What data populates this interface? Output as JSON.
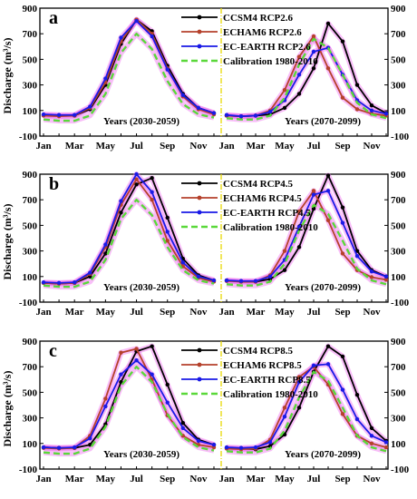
{
  "chart_data": [
    {
      "type": "line",
      "panel_label": "a",
      "ylabel": "Discharge (m³/s)",
      "ylim": [
        -100,
        900
      ],
      "yticks": [
        -100,
        100,
        300,
        500,
        700,
        900
      ],
      "xtick_labels": [
        "Jan",
        "Mar",
        "May",
        "Jul",
        "Sep",
        "Nov"
      ],
      "months": [
        "Jan",
        "Feb",
        "Mar",
        "Apr",
        "May",
        "Jun",
        "Jul",
        "Aug",
        "Sep",
        "Oct",
        "Nov",
        "Dec"
      ],
      "periods": [
        {
          "label": "Years (2030-2059)",
          "series": [
            {
              "name": "CCSM4 RCP2.6",
              "values": [
                65,
                60,
                60,
                110,
                300,
                620,
                810,
                720,
                450,
                230,
                120,
                80
              ]
            },
            {
              "name": "ECHAM6 RCP2.6",
              "values": [
                60,
                55,
                60,
                120,
                320,
                640,
                810,
                700,
                430,
                210,
                110,
                70
              ]
            },
            {
              "name": "EC-EARTH RCP2.6",
              "values": [
                70,
                65,
                65,
                130,
                350,
                670,
                800,
                680,
                420,
                220,
                120,
                80
              ]
            },
            {
              "name": "Calibration 1980-2010",
              "values": [
                30,
                20,
                20,
                60,
                230,
                550,
                700,
                580,
                330,
                150,
                70,
                45
              ]
            }
          ]
        },
        {
          "label": "Years (2070-2099)",
          "series": [
            {
              "name": "CCSM4 RCP2.6",
              "values": [
                60,
                55,
                60,
                70,
                120,
                230,
                430,
                780,
                640,
                300,
                140,
                80
              ]
            },
            {
              "name": "ECHAM6 RCP2.6",
              "values": [
                60,
                55,
                60,
                100,
                260,
                520,
                680,
                430,
                200,
                110,
                75,
                60
              ]
            },
            {
              "name": "EC-EARTH RCP2.6",
              "values": [
                65,
                55,
                60,
                90,
                180,
                380,
                560,
                590,
                380,
                180,
                100,
                75
              ]
            },
            {
              "name": "Calibration 1980-2010",
              "values": [
                40,
                30,
                30,
                60,
                200,
                460,
                660,
                590,
                380,
                160,
                70,
                40
              ]
            }
          ]
        }
      ]
    },
    {
      "type": "line",
      "panel_label": "b",
      "ylabel": "Discharge (m³/s)",
      "ylim": [
        -100,
        900
      ],
      "yticks": [
        -100,
        100,
        300,
        500,
        700,
        900
      ],
      "xtick_labels": [
        "Jan",
        "Mar",
        "May",
        "Jul",
        "Sep",
        "Nov"
      ],
      "months": [
        "Jan",
        "Feb",
        "Mar",
        "Apr",
        "May",
        "Jun",
        "Jul",
        "Aug",
        "Sep",
        "Oct",
        "Nov",
        "Dec"
      ],
      "periods": [
        {
          "label": "Years (2030-2059)",
          "series": [
            {
              "name": "CCSM4 RCP4.5",
              "values": [
                50,
                45,
                50,
                100,
                280,
                600,
                820,
                870,
                560,
                240,
                110,
                70
              ]
            },
            {
              "name": "ECHAM6 RCP4.5",
              "values": [
                50,
                45,
                50,
                120,
                330,
                660,
                860,
                700,
                380,
                180,
                90,
                60
              ]
            },
            {
              "name": "EC-EARTH RCP4.5",
              "values": [
                55,
                50,
                55,
                130,
                350,
                690,
                900,
                760,
                450,
                210,
                100,
                70
              ]
            },
            {
              "name": "Calibration 1980-2010",
              "values": [
                30,
                20,
                20,
                60,
                230,
                550,
                700,
                580,
                330,
                150,
                70,
                45
              ]
            }
          ]
        },
        {
          "label": "Years (2070-2099)",
          "series": [
            {
              "name": "CCSM4 RCP4.5",
              "values": [
                70,
                60,
                60,
                80,
                150,
                330,
                630,
                890,
                640,
                300,
                150,
                100
              ]
            },
            {
              "name": "ECHAM6 RCP4.5",
              "values": [
                65,
                60,
                60,
                110,
                300,
                610,
                770,
                540,
                280,
                150,
                95,
                75
              ]
            },
            {
              "name": "EC-EARTH RCP4.5",
              "values": [
                70,
                65,
                65,
                100,
                230,
                490,
                740,
                770,
                520,
                260,
                140,
                100
              ]
            },
            {
              "name": "Calibration 1980-2010",
              "values": [
                40,
                30,
                30,
                60,
                200,
                460,
                660,
                590,
                380,
                160,
                70,
                40
              ]
            }
          ]
        }
      ]
    },
    {
      "type": "line",
      "panel_label": "c",
      "ylabel": "Discharge (m³/s)",
      "ylim": [
        -100,
        900
      ],
      "yticks": [
        -100,
        100,
        300,
        500,
        700,
        900
      ],
      "xtick_labels": [
        "Jan",
        "Mar",
        "May",
        "Jul",
        "Sep",
        "Nov"
      ],
      "months": [
        "Jan",
        "Feb",
        "Mar",
        "Apr",
        "May",
        "Jun",
        "Jul",
        "Aug",
        "Sep",
        "Oct",
        "Nov",
        "Dec"
      ],
      "periods": [
        {
          "label": "Years (2030-2059)",
          "series": [
            {
              "name": "CCSM4 RCP8.5",
              "values": [
                70,
                65,
                65,
                90,
                250,
                580,
                820,
                860,
                560,
                260,
                130,
                90
              ]
            },
            {
              "name": "ECHAM6 RCP8.5",
              "values": [
                65,
                60,
                65,
                160,
                450,
                810,
                840,
                600,
                320,
                160,
                90,
                70
              ]
            },
            {
              "name": "EC-EARTH RCP8.5",
              "values": [
                70,
                65,
                70,
                140,
                390,
                640,
                750,
                640,
                420,
                220,
                120,
                90
              ]
            },
            {
              "name": "Calibration 1980-2010",
              "values": [
                30,
                20,
                20,
                60,
                230,
                550,
                700,
                580,
                330,
                150,
                70,
                45
              ]
            }
          ]
        },
        {
          "label": "Years (2070-2099)",
          "series": [
            {
              "name": "CCSM4 RCP8.5",
              "values": [
                65,
                60,
                55,
                80,
                170,
                380,
                660,
                860,
                780,
                480,
                220,
                120
              ]
            },
            {
              "name": "ECHAM6 RCP8.5",
              "values": [
                60,
                55,
                60,
                130,
                380,
                620,
                700,
                560,
                330,
                160,
                100,
                70
              ]
            },
            {
              "name": "EC-EARTH RCP8.5",
              "values": [
                70,
                65,
                70,
                110,
                310,
                580,
                710,
                720,
                520,
                290,
                160,
                110
              ]
            },
            {
              "name": "Calibration 1980-2010",
              "values": [
                40,
                30,
                30,
                60,
                200,
                460,
                660,
                590,
                380,
                160,
                70,
                40
              ]
            }
          ]
        }
      ]
    }
  ],
  "series_styles": [
    {
      "color": "#000000",
      "dashed": false
    },
    {
      "color": "#b5412b",
      "dashed": false
    },
    {
      "color": "#1a1ae6",
      "dashed": false
    },
    {
      "color": "#5ad83a",
      "dashed": true
    }
  ],
  "highlight_color": "#f06ef0",
  "divider_color": "#e8d800"
}
